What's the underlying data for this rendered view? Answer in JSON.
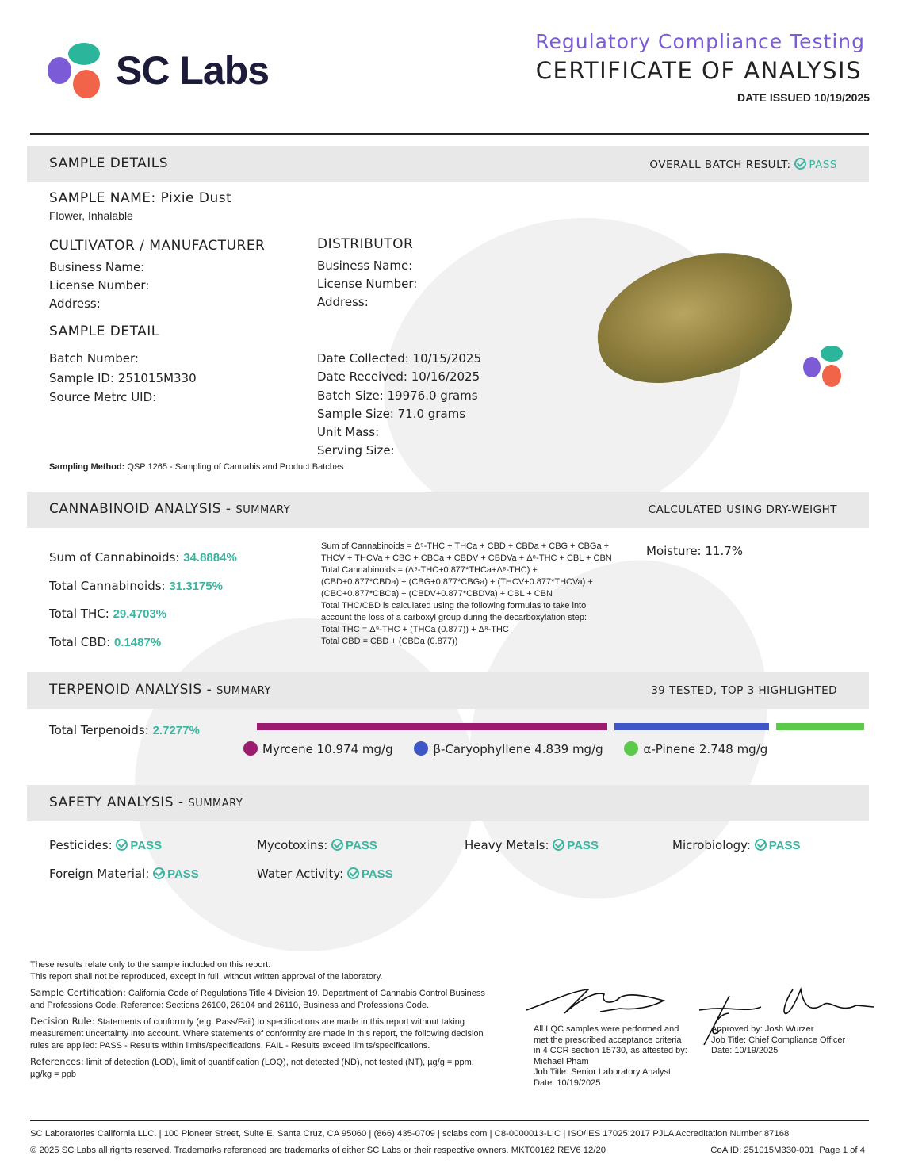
{
  "header": {
    "logo_text": "SC Labs",
    "subtitle": "Regulatory Compliance Testing",
    "title": "CERTIFICATE OF ANALYSIS",
    "date_issued": "DATE ISSUED 10/19/2025"
  },
  "colors": {
    "accent_purple": "#7b5cd6",
    "pass_teal": "#3ab5a0",
    "myrcene": "#9b1b6e",
    "caryophyllene": "#3f56c6",
    "pinene": "#5cc94a"
  },
  "sample_details": {
    "heading": "SAMPLE DETAILS",
    "overall_label": "OVERALL BATCH RESULT:",
    "overall_result": "PASS",
    "sample_name": "SAMPLE NAME: Pixie Dust",
    "category": "Flower, Inhalable",
    "cultivator_heading": "CULTIVATOR / MANUFACTURER",
    "cultivator": [
      "Business Name:",
      "License Number:",
      "Address:"
    ],
    "distributor_heading": "DISTRIBUTOR",
    "distributor": [
      "Business Name:",
      "License Number:",
      "Address:"
    ],
    "detail_heading": "SAMPLE DETAIL",
    "left": [
      "Batch Number:",
      "Sample ID: 251015M330",
      "Source Metrc UID:"
    ],
    "right": [
      "Date Collected: 10/15/2025",
      "Date Received: 10/16/2025",
      "Batch Size: 19976.0 grams",
      "Sample Size: 71.0 grams",
      "Unit Mass:",
      "Serving Size:"
    ],
    "sampling_method_label": "Sampling Method:",
    "sampling_method": "QSP 1265 - Sampling of Cannabis and Product Batches"
  },
  "cannabinoid": {
    "heading": "CANNABINOID ANALYSIS -",
    "heading_small": "SUMMARY",
    "right": "CALCULATED USING DRY-WEIGHT",
    "items": [
      {
        "label": "Sum of Cannabinoids:",
        "value": "34.8884%"
      },
      {
        "label": "Total Cannabinoids:",
        "value": "31.3175%"
      },
      {
        "label": "Total THC:",
        "value": "29.4703%"
      },
      {
        "label": "Total CBD:",
        "value": "0.1487%"
      }
    ],
    "formulas": [
      "Sum of Cannabinoids = Δ⁹-THC + THCa + CBD + CBDa + CBG + CBGa +",
      "THCV + THCVa + CBC + CBCa + CBDV + CBDVa + Δ⁸-THC + CBL + CBN",
      "Total Cannabinoids = (Δ⁹-THC+0.877*THCa+Δ⁸-THC) +",
      "(CBD+0.877*CBDa) + (CBG+0.877*CBGa) + (THCV+0.877*THCVa) +",
      "(CBC+0.877*CBCa) + (CBDV+0.877*CBDVa) + CBL + CBN",
      "Total THC/CBD is calculated using the following formulas to take into",
      "account the loss of a carboxyl group during the decarboxylation step:",
      "Total THC = Δ⁹-THC + (THCa (0.877)) + Δ⁸-THC",
      "Total CBD = CBD + (CBDa (0.877))"
    ],
    "moisture": "Moisture: 11.7%"
  },
  "terpenoid": {
    "heading": "TERPENOID ANALYSIS -",
    "heading_small": "SUMMARY",
    "right": "39 TESTED, TOP 3 HIGHLIGHTED",
    "total_label": "Total Terpenoids:",
    "total_value": "2.7277%",
    "top": [
      {
        "name": "Myrcene 10.974 mg/g",
        "mg_g": 10.974
      },
      {
        "name": "β-Caryophyllene 4.839 mg/g",
        "mg_g": 4.839
      },
      {
        "name": "α-Pinene 2.748 mg/g",
        "mg_g": 2.748
      }
    ]
  },
  "safety": {
    "heading": "SAFETY ANALYSIS -",
    "heading_small": "SUMMARY",
    "items": [
      {
        "label": "Pesticides:",
        "result": "PASS"
      },
      {
        "label": "Mycotoxins:",
        "result": "PASS"
      },
      {
        "label": "Heavy Metals:",
        "result": "PASS"
      },
      {
        "label": "Microbiology:",
        "result": "PASS"
      },
      {
        "label": "Foreign Material:",
        "result": "PASS"
      },
      {
        "label": "Water Activity:",
        "result": "PASS"
      }
    ]
  },
  "notes": {
    "l1": "These results relate only to the sample included on this report.",
    "l2": "This report shall not be reproduced, except in full, without written approval of the laboratory.",
    "cert_label": "Sample Certification:",
    "cert": "California Code of Regulations Title 4 Division 19. Department of Cannabis Control Business and Professions Code. Reference: Sections 26100, 26104 and 26110, Business and Professions Code.",
    "rule_label": "Decision Rule:",
    "rule": "Statements of conformity (e.g. Pass/Fail) to specifications are made in this report without taking measurement uncertainty into account. Where statements of conformity are made in this report, the following decision rules are applied: PASS - Results within limits/specifications, FAIL - Results exceed limits/specifications.",
    "ref_label": "References:",
    "ref": "limit of detection (LOD), limit of quantification (LOQ), not detected (ND), not tested (NT), µg/g = ppm, µg/kg = ppb"
  },
  "signatures": {
    "analyst": [
      "All LQC samples were performed and",
      "met the prescribed acceptance criteria",
      "in 4 CCR section 15730, as attested by:",
      "Michael Pham",
      "Job Title: Senior Laboratory Analyst",
      "Date: 10/19/2025"
    ],
    "approver": [
      "Approved by: Josh Wurzer",
      "Job Title: Chief Compliance Officer",
      "Date: 10/19/2025"
    ]
  },
  "footer": {
    "line1": "SC Laboratories California LLC. | 100 Pioneer Street, Suite E, Santa Cruz, CA 95060 | (866) 435-0709 | sclabs.com | C8-0000013-LIC | ISO/IES 17025:2017 PJLA Accreditation Number 87168",
    "line2": "© 2025 SC Labs all rights reserved. Trademarks referenced are trademarks of either SC Labs or their respective owners. MKT00162 REV6 12/20",
    "coa": "CoA ID: 251015M330-001  Page 1 of 4"
  }
}
